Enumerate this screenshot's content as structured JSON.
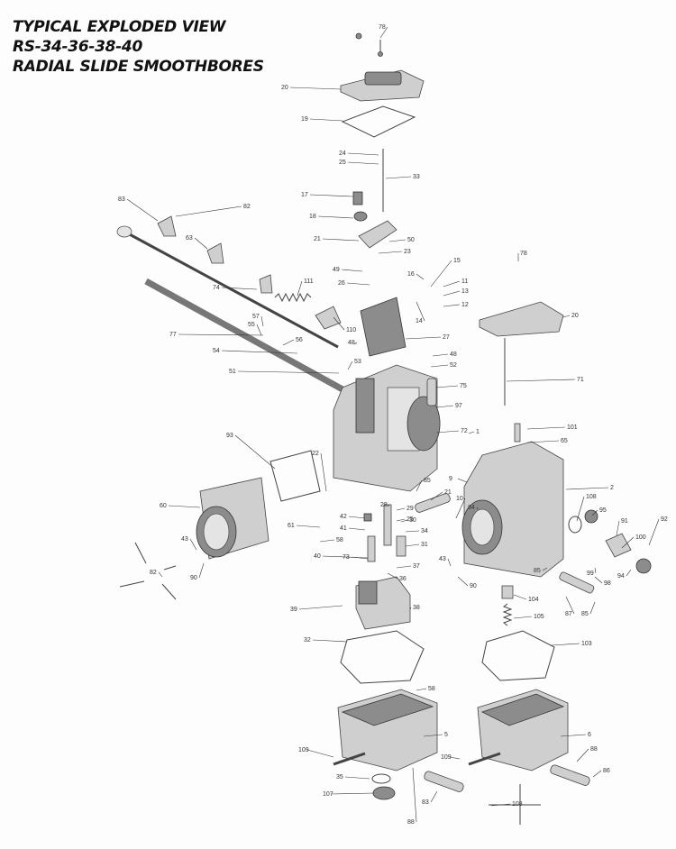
{
  "title": {
    "line1": "TYPICAL EXPLODED VIEW",
    "line2": "RS-34-36-38-40",
    "line3": "RADIAL SLIDE SMOOTHBORES"
  },
  "callouts": [
    "78",
    "20",
    "19",
    "24",
    "25",
    "33",
    "83",
    "82",
    "17",
    "18",
    "21",
    "50",
    "23",
    "63",
    "49",
    "15",
    "26",
    "16",
    "48",
    "11",
    "13",
    "74",
    "111",
    "14",
    "12",
    "78",
    "20",
    "110",
    "57",
    "55",
    "56",
    "27",
    "77",
    "54",
    "48",
    "52",
    "51",
    "53",
    "75",
    "71",
    "97",
    "72",
    "1",
    "101",
    "65",
    "93",
    "22",
    "60",
    "9",
    "21",
    "84",
    "10",
    "85",
    "29",
    "25",
    "2",
    "108",
    "95",
    "91",
    "92",
    "28",
    "30",
    "61",
    "42",
    "41",
    "34",
    "58",
    "31",
    "100",
    "43",
    "40",
    "73",
    "37",
    "99",
    "98",
    "94",
    "82",
    "90",
    "43",
    "90",
    "85",
    "36",
    "104",
    "87",
    "85",
    "105",
    "38",
    "39",
    "32",
    "103",
    "58",
    "5",
    "6",
    "109",
    "35",
    "109",
    "88",
    "86",
    "107",
    "83",
    "88",
    "108"
  ]
}
